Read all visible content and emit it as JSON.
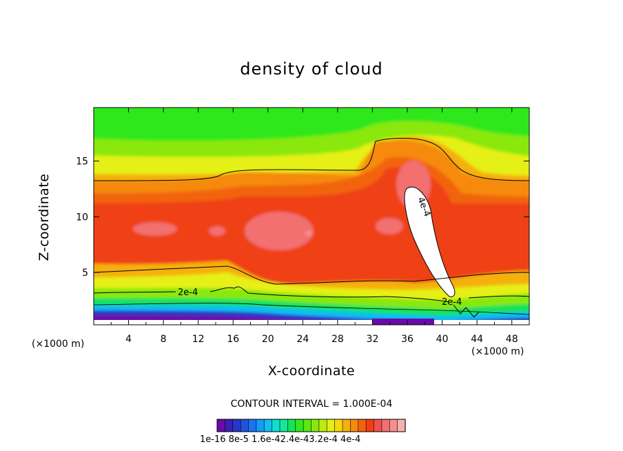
{
  "chart_data": {
    "type": "heatmap",
    "title": "density of cloud",
    "xlabel": "X-coordinate",
    "ylabel": "Z-coordinate",
    "x_unit_left": "(×1000 m)",
    "x_unit_right": "(×1000 m)",
    "xlim": [
      0,
      50
    ],
    "ylim": [
      0.3,
      19.8
    ],
    "x_ticks": [
      4,
      8,
      12,
      16,
      20,
      24,
      28,
      32,
      36,
      40,
      44,
      48
    ],
    "x_tick_labels": [
      "4",
      "8",
      "12",
      "16",
      "20",
      "24",
      "28",
      "32",
      "36",
      "40",
      "44",
      "48"
    ],
    "y_ticks": [
      5,
      10,
      15
    ],
    "y_tick_labels": [
      "5",
      "10",
      "15"
    ],
    "contour_interval_text": "CONTOUR INTERVAL = 1.000E-04",
    "colorbar_labels_text": "1e-16 8e-5 1.6e-42.4e-43.2e-4 4e-4",
    "colorbar_colors": [
      "#6a0aa8",
      "#3a1fb5",
      "#2638c8",
      "#1f55dc",
      "#1a74ee",
      "#159af5",
      "#10c0f0",
      "#10dcd0",
      "#10e89c",
      "#16e35a",
      "#2fe81c",
      "#5ae810",
      "#8ae810",
      "#b8ec10",
      "#e5f012",
      "#f5d80f",
      "#f5b00e",
      "#f58a0e",
      "#f2630e",
      "#ef3f14",
      "#f05050",
      "#f27070",
      "#f49090",
      "#f7b0b0"
    ],
    "contour_labels": [
      "2e-4",
      "4e-4",
      "2e-4"
    ],
    "field_colors": {
      "top": "#2fe81c",
      "band_light": "#8ae810",
      "band_yellow": "#e5f012",
      "orange_light": "#f5b00e",
      "orange": "#f58a0e",
      "orange_dark": "#f2630e",
      "red": "#ef3f14",
      "pink": "#f27070",
      "pink_light": "#f49090",
      "core_white": "#ffffff",
      "low_cyan": "#10c0f0",
      "low_blue": "#2638c8",
      "low_purple": "#6a0aa8"
    }
  }
}
